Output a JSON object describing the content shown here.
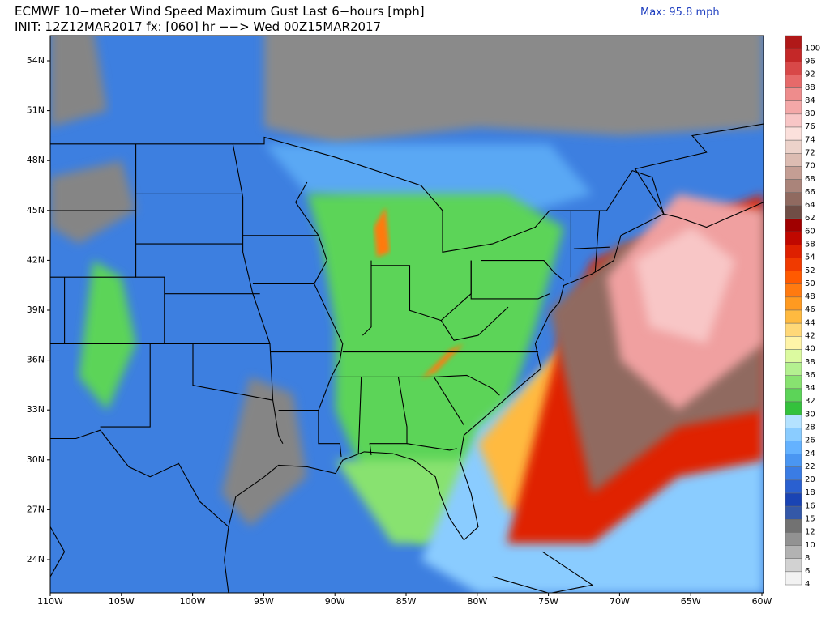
{
  "header": {
    "title": "ECMWF 10−meter Wind Speed Maximum Gust Last 6−hours [mph]",
    "subtitle": "INIT: 12Z12MAR2017 fx: [060] hr −−> Wed 00Z15MAR2017",
    "max_label": "Max: 95.8 mph"
  },
  "map": {
    "lon_labels": [
      "110W",
      "105W",
      "100W",
      "95W",
      "90W",
      "85W",
      "80W",
      "75W",
      "70W",
      "65W",
      "60W"
    ],
    "lat_labels": [
      "54N",
      "51N",
      "48N",
      "45N",
      "42N",
      "39N",
      "36N",
      "33N",
      "30N",
      "27N",
      "24N"
    ]
  },
  "colorbar": {
    "levels": [
      {
        "label": 100,
        "color": "#b01818"
      },
      {
        "label": 96,
        "color": "#c42828"
      },
      {
        "label": 92,
        "color": "#d84848"
      },
      {
        "label": 88,
        "color": "#e66a6a"
      },
      {
        "label": 84,
        "color": "#ee8c8c"
      },
      {
        "label": 80,
        "color": "#f4a8a8"
      },
      {
        "label": 76,
        "color": "#f8c6c6"
      },
      {
        "label": 74,
        "color": "#fbe0dc"
      },
      {
        "label": 72,
        "color": "#ecd2ca"
      },
      {
        "label": 70,
        "color": "#dcbcb2"
      },
      {
        "label": 68,
        "color": "#c49e94"
      },
      {
        "label": 66,
        "color": "#aa847a"
      },
      {
        "label": 64,
        "color": "#906a60"
      },
      {
        "label": 62,
        "color": "#704e46"
      },
      {
        "label": 60,
        "color": "#a00000"
      },
      {
        "label": 58,
        "color": "#c00800"
      },
      {
        "label": 54,
        "color": "#de2000"
      },
      {
        "label": 52,
        "color": "#f03a00"
      },
      {
        "label": 50,
        "color": "#ff5a00"
      },
      {
        "label": 48,
        "color": "#ff7a10"
      },
      {
        "label": 46,
        "color": "#ff9a20"
      },
      {
        "label": 44,
        "color": "#ffba40"
      },
      {
        "label": 42,
        "color": "#ffd878"
      },
      {
        "label": 40,
        "color": "#fff4a8"
      },
      {
        "label": 38,
        "color": "#dcfaa0"
      },
      {
        "label": 36,
        "color": "#b4f090"
      },
      {
        "label": 34,
        "color": "#88e270"
      },
      {
        "label": 32,
        "color": "#5cd458"
      },
      {
        "label": 30,
        "color": "#34c23c"
      },
      {
        "label": 28,
        "color": "#b4e2ff"
      },
      {
        "label": 26,
        "color": "#8accff"
      },
      {
        "label": 24,
        "color": "#64b2ff"
      },
      {
        "label": 22,
        "color": "#4a96f2"
      },
      {
        "label": 20,
        "color": "#3a7ce4"
      },
      {
        "label": 18,
        "color": "#2a60d0"
      },
      {
        "label": 16,
        "color": "#1a44b4"
      },
      {
        "label": 15,
        "color": "#3458a8"
      },
      {
        "label": 12,
        "color": "#727272"
      },
      {
        "label": 10,
        "color": "#929292"
      },
      {
        "label": 8,
        "color": "#b2b2b2"
      },
      {
        "label": 6,
        "color": "#d2d2d2"
      },
      {
        "label": 4,
        "color": "#f2f2f2"
      }
    ]
  }
}
